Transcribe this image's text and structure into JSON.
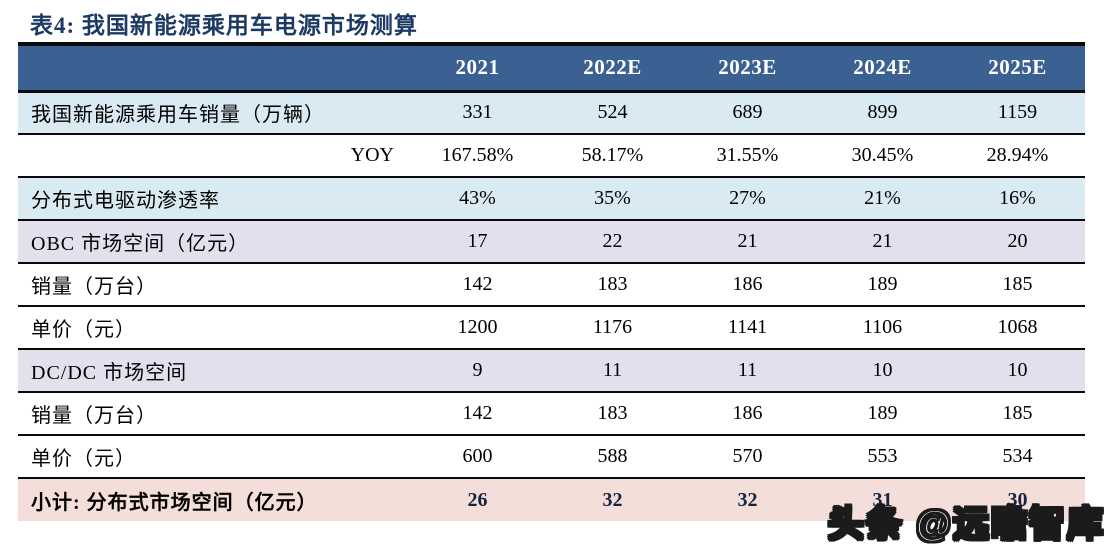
{
  "title": "表4:  我国新能源乘用车电源市场测算",
  "watermark": "头条 @远瞻智库",
  "colors": {
    "header_bg": "#3a6191",
    "row_light_blue": "#d9eaf2",
    "row_lavender": "#e4dfed",
    "row_pink": "#f4ded9",
    "title_text": "#1c3a63",
    "header_text": "#ffffff",
    "rule_line": "#0a0a0a"
  },
  "table": {
    "columns": [
      "",
      "2021",
      "2022E",
      "2023E",
      "2024E",
      "2025E"
    ],
    "rows": [
      {
        "label": "我国新能源乘用车销量（万辆）",
        "values": [
          "331",
          "524",
          "689",
          "899",
          "1159"
        ]
      },
      {
        "label": "YOY",
        "values": [
          "167.58%",
          "58.17%",
          "31.55%",
          "30.45%",
          "28.94%"
        ]
      },
      {
        "label": "分布式电驱动渗透率",
        "values": [
          "43%",
          "35%",
          "27%",
          "21%",
          "16%"
        ]
      },
      {
        "label": "OBC 市场空间（亿元）",
        "values": [
          "17",
          "22",
          "21",
          "21",
          "20"
        ]
      },
      {
        "label": "销量（万台）",
        "values": [
          "142",
          "183",
          "186",
          "189",
          "185"
        ]
      },
      {
        "label": "单价（元）",
        "values": [
          "1200",
          "1176",
          "1141",
          "1106",
          "1068"
        ]
      },
      {
        "label": "DC/DC 市场空间",
        "values": [
          "9",
          "11",
          "11",
          "10",
          "10"
        ]
      },
      {
        "label": "销量（万台）",
        "values": [
          "142",
          "183",
          "186",
          "189",
          "185"
        ]
      },
      {
        "label": "单价（元）",
        "values": [
          "600",
          "588",
          "570",
          "553",
          "534"
        ]
      },
      {
        "label": "小计:  分布式市场空间（亿元）",
        "values": [
          "26",
          "32",
          "32",
          "31",
          "30"
        ]
      }
    ]
  }
}
